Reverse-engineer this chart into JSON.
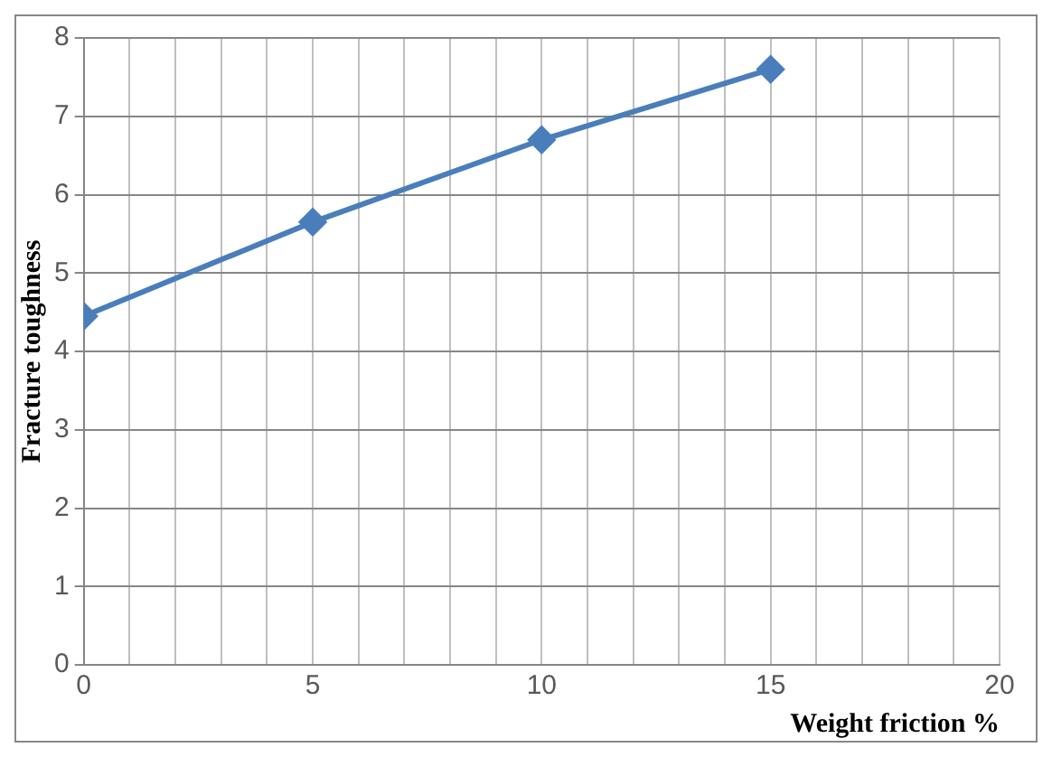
{
  "chart_data": {
    "type": "line",
    "xlabel": "Weight friction %",
    "ylabel": "Fracture toughness",
    "x": [
      0,
      5,
      10,
      15
    ],
    "series": [
      {
        "color": "#4a7ebb",
        "values": [
          4.45,
          5.65,
          6.7,
          7.6
        ]
      }
    ],
    "xlim": [
      0,
      20
    ],
    "xticks": [
      0,
      {
        "value": 1,
        "label": null
      },
      {
        "value": 2,
        "label": null
      },
      {
        "value": 3,
        "label": null
      },
      {
        "value": 4,
        "label": null
      },
      5,
      {
        "value": 6,
        "label": null
      },
      {
        "value": 7,
        "label": null
      },
      {
        "value": 8,
        "label": null
      },
      {
        "value": 9,
        "label": null
      },
      10,
      {
        "value": 11,
        "label": null
      },
      {
        "value": 12,
        "label": null
      },
      {
        "value": 13,
        "label": null
      },
      {
        "value": 14,
        "label": null
      },
      15,
      {
        "value": 16,
        "label": null
      },
      {
        "value": 17,
        "label": null
      },
      {
        "value": 18,
        "label": null
      },
      {
        "value": 19,
        "label": null
      },
      20
    ],
    "ylim": [
      0,
      8
    ],
    "yticks": [
      0,
      1,
      2,
      3,
      4,
      5,
      6,
      7,
      8
    ],
    "grid": true,
    "marker": "diamond",
    "line_style": "solid",
    "legend": false
  }
}
